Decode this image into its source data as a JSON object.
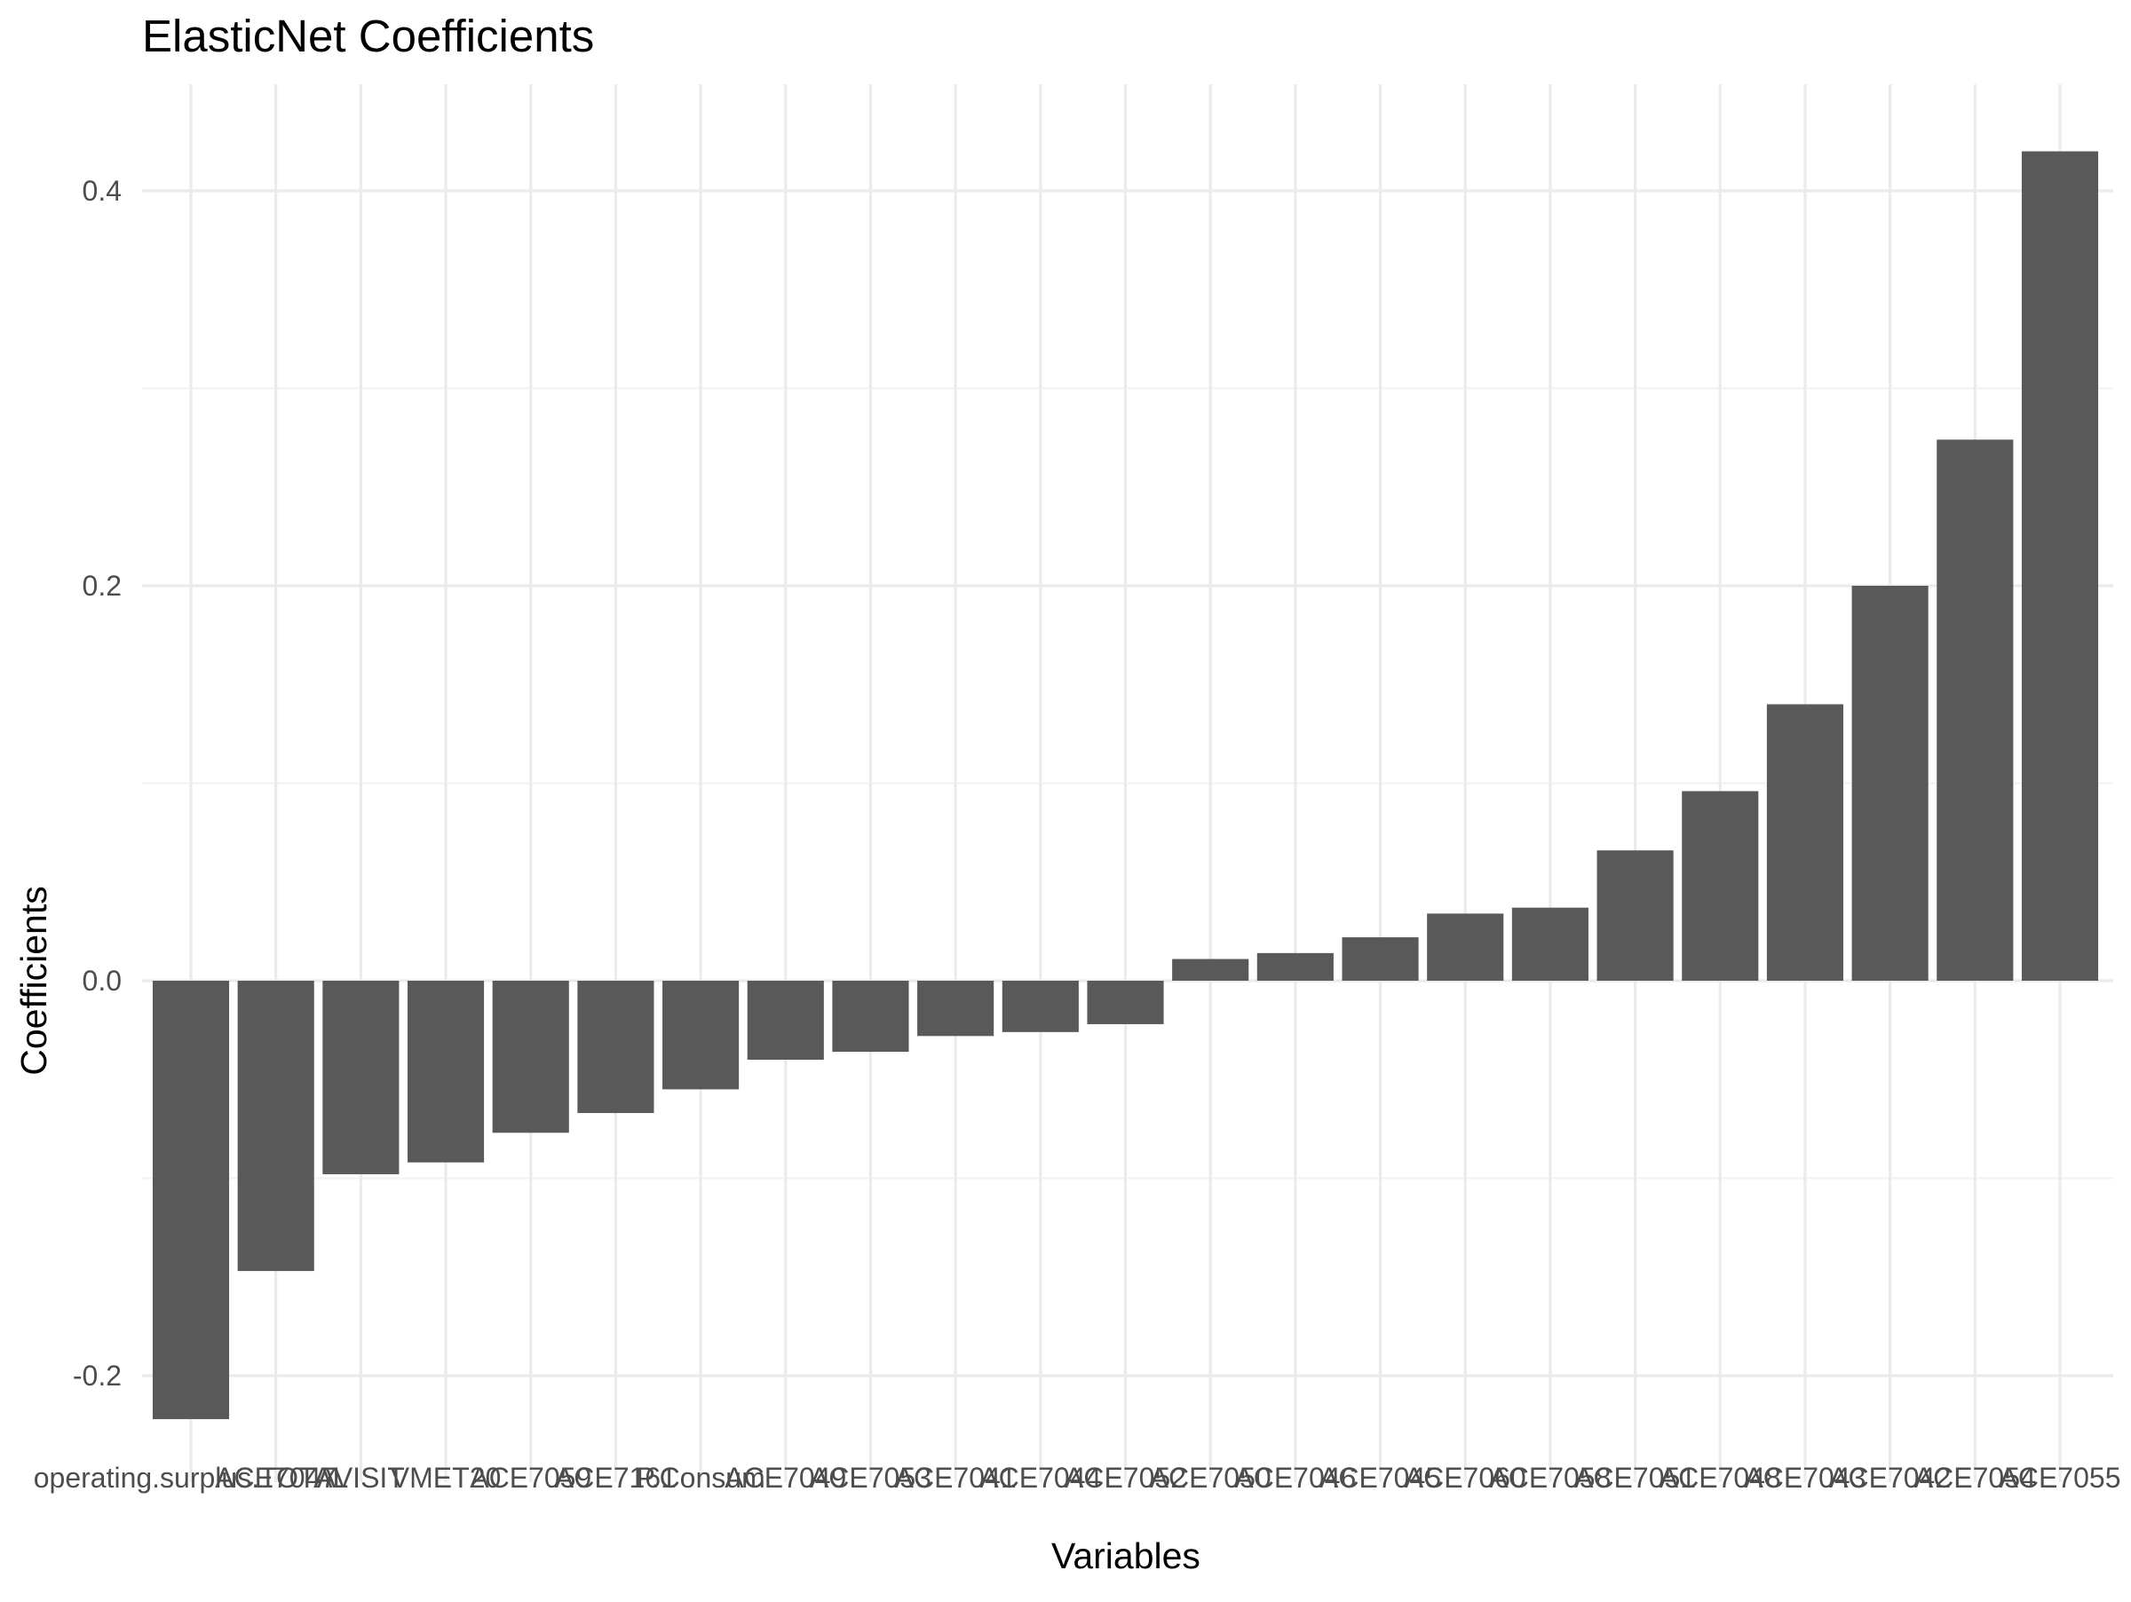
{
  "chart_data": {
    "type": "bar",
    "title": "ElasticNet Coefficients",
    "xlabel": "Variables",
    "ylabel": "Coefficients",
    "ylim": [
      -0.24,
      0.44
    ],
    "yticks": [
      -0.2,
      0.0,
      0.2,
      0.4
    ],
    "ytick_labels": [
      "-0.2",
      "0.0",
      "0.2",
      "0.4"
    ],
    "grid": true,
    "bar_color": "#595959",
    "grid_color": "#ebebeb",
    "categories": [
      "operating.surplus.TOTAL",
      "ACE7047",
      "AVISIT",
      "VMET20",
      "ACE7059",
      "ACE7161",
      "P.Consum",
      "ACE7049",
      "ACE7053",
      "ACE7041",
      "ACE7044",
      "ACE7052",
      "ACE7050",
      "ACE7046",
      "ACE7045",
      "ACE7060",
      "ACE7058",
      "ACE7051",
      "ACE7048",
      "ACE7043",
      "ACE7042",
      "ACE7054",
      "ACE7055"
    ],
    "values": [
      -0.222,
      -0.147,
      -0.098,
      -0.092,
      -0.077,
      -0.067,
      -0.055,
      -0.04,
      -0.036,
      -0.028,
      -0.026,
      -0.022,
      0.011,
      0.014,
      0.022,
      0.034,
      0.037,
      0.066,
      0.096,
      0.14,
      0.2,
      0.274,
      0.42
    ]
  }
}
